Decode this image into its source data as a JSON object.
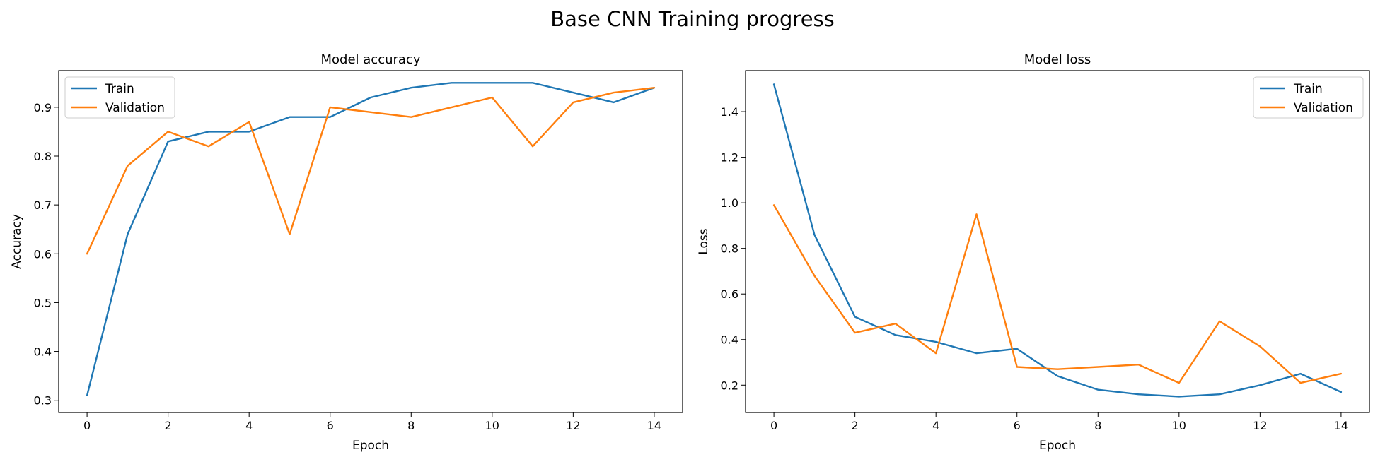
{
  "figure": {
    "suptitle": "Base CNN Training progress"
  },
  "chart_data": [
    {
      "type": "line",
      "title": "Model accuracy",
      "xlabel": "Epoch",
      "ylabel": "Accuracy",
      "x": [
        0,
        1,
        2,
        3,
        4,
        5,
        6,
        7,
        8,
        9,
        10,
        11,
        12,
        13,
        14
      ],
      "xlim": [
        -0.7,
        14.7
      ],
      "ylim": [
        0.275,
        0.975
      ],
      "xticks": [
        0,
        2,
        4,
        6,
        8,
        10,
        12,
        14
      ],
      "yticks": [
        0.3,
        0.4,
        0.5,
        0.6,
        0.7,
        0.8,
        0.9
      ],
      "ytick_labels": [
        "0.3",
        "0.4",
        "0.5",
        "0.6",
        "0.7",
        "0.8",
        "0.9"
      ],
      "legend_loc": "upper left",
      "grid": false,
      "series": [
        {
          "name": "Train",
          "color": "#1f77b4",
          "values": [
            0.31,
            0.64,
            0.83,
            0.85,
            0.85,
            0.88,
            0.88,
            0.92,
            0.94,
            0.95,
            0.95,
            0.95,
            0.93,
            0.91,
            0.94
          ]
        },
        {
          "name": "Validation",
          "color": "#ff7f0e",
          "values": [
            0.6,
            0.78,
            0.85,
            0.82,
            0.87,
            0.64,
            0.9,
            0.89,
            0.88,
            0.9,
            0.92,
            0.82,
            0.91,
            0.93,
            0.94
          ]
        }
      ]
    },
    {
      "type": "line",
      "title": "Model loss",
      "xlabel": "Epoch",
      "ylabel": "Loss",
      "x": [
        0,
        1,
        2,
        3,
        4,
        5,
        6,
        7,
        8,
        9,
        10,
        11,
        12,
        13,
        14
      ],
      "xlim": [
        -0.7,
        14.7
      ],
      "ylim": [
        0.08,
        1.58
      ],
      "xticks": [
        0,
        2,
        4,
        6,
        8,
        10,
        12,
        14
      ],
      "yticks": [
        0.2,
        0.4,
        0.6,
        0.8,
        1.0,
        1.2,
        1.4
      ],
      "ytick_labels": [
        "0.2",
        "0.4",
        "0.6",
        "0.8",
        "1.0",
        "1.2",
        "1.4"
      ],
      "legend_loc": "upper right",
      "grid": false,
      "series": [
        {
          "name": "Train",
          "color": "#1f77b4",
          "values": [
            1.52,
            0.86,
            0.5,
            0.42,
            0.39,
            0.34,
            0.36,
            0.24,
            0.18,
            0.16,
            0.15,
            0.16,
            0.2,
            0.25,
            0.17
          ]
        },
        {
          "name": "Validation",
          "color": "#ff7f0e",
          "values": [
            0.99,
            0.68,
            0.43,
            0.47,
            0.34,
            0.95,
            0.28,
            0.27,
            0.28,
            0.29,
            0.21,
            0.48,
            0.37,
            0.21,
            0.25
          ]
        }
      ]
    }
  ]
}
